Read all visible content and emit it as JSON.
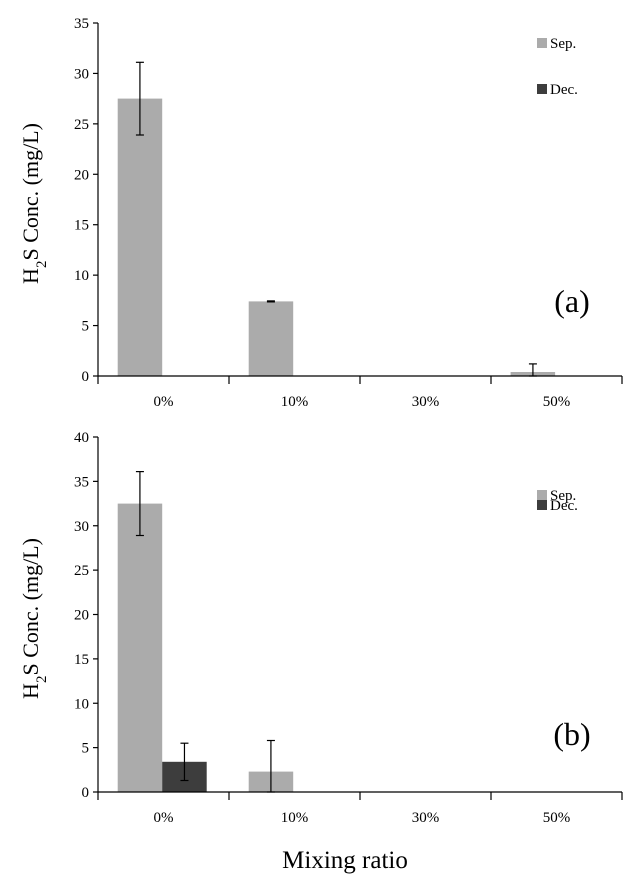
{
  "figure": {
    "xlabel": "Mixing ratio"
  },
  "colors": {
    "sep": "#ababab",
    "dec": "#3d3d3d",
    "axis": "#000000"
  },
  "chart_data": [
    {
      "type": "bar",
      "panel_label": "(a)",
      "ylabel_main": "H",
      "ylabel_sub": "2",
      "ylabel_rest": "S Conc. (mg/L)",
      "ylim": [
        0,
        35
      ],
      "yticks": [
        0,
        5,
        10,
        15,
        20,
        25,
        30,
        35
      ],
      "ytick_labels": [
        "0",
        "5",
        "10",
        "15",
        "20",
        "25",
        "30",
        "35"
      ],
      "categories": [
        "0%",
        "10%",
        "30%",
        "50%"
      ],
      "legend_position": "top-right",
      "series": [
        {
          "name": "Sep.",
          "values": [
            27.5,
            7.4,
            0,
            0.4
          ],
          "errors": [
            3.6,
            0.05,
            null,
            0.8
          ]
        },
        {
          "name": "Dec.",
          "values": [
            0,
            0,
            0,
            0
          ],
          "errors": [
            null,
            null,
            null,
            null
          ]
        }
      ]
    },
    {
      "type": "bar",
      "panel_label": "(b)",
      "ylabel_main": "H",
      "ylabel_sub": "2",
      "ylabel_rest": "S Conc. (mg/L)",
      "ylim": [
        0,
        40
      ],
      "yticks": [
        0,
        5,
        10,
        15,
        20,
        25,
        30,
        35,
        40
      ],
      "ytick_labels": [
        "0",
        "5",
        "10",
        "15",
        "20",
        "25",
        "30",
        "35",
        "40"
      ],
      "categories": [
        "0%",
        "10%",
        "30%",
        "50%"
      ],
      "legend_position": "top-right",
      "series": [
        {
          "name": "Sep.",
          "values": [
            32.5,
            2.3,
            0,
            0
          ],
          "errors": [
            3.6,
            3.5,
            null,
            null
          ]
        },
        {
          "name": "Dec.",
          "values": [
            3.4,
            0,
            0,
            0
          ],
          "errors": [
            2.1,
            null,
            null,
            null
          ]
        }
      ]
    }
  ]
}
